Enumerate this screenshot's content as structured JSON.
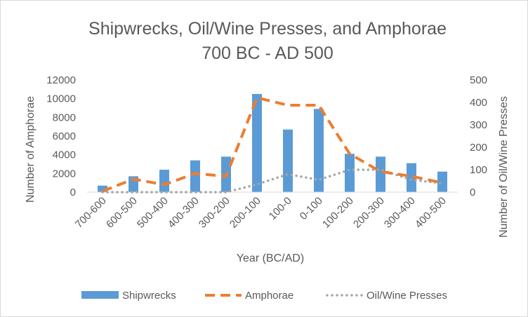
{
  "chart_data": {
    "type": "bar",
    "title": "Shipwrecks, Oil/Wine Presses, and Amphorae",
    "subtitle": "700 BC - AD 500",
    "xlabel": "Year (BC/AD)",
    "ylabel": "Number of Amphorae",
    "y2label": "Number of Oil/Wine Presses",
    "categories": [
      "700-600",
      "600-500",
      "500-400",
      "400-300",
      "300-200",
      "200-100",
      "100-0",
      "0-100",
      "100-200",
      "200-300",
      "300-400",
      "400-500"
    ],
    "ylim": [
      0,
      12000
    ],
    "yticks": [
      0,
      2000,
      4000,
      6000,
      8000,
      10000,
      12000
    ],
    "y2lim": [
      0,
      500
    ],
    "y2ticks": [
      0,
      100,
      200,
      300,
      400,
      500
    ],
    "grid": false,
    "legend_position": "bottom",
    "series": [
      {
        "name": "Shipwrecks",
        "type": "bar",
        "axis": "left",
        "color": "#5b9bd5",
        "values": [
          700,
          1700,
          2400,
          3400,
          3800,
          10500,
          6700,
          8900,
          4100,
          3800,
          3100,
          2200
        ]
      },
      {
        "name": "Amphorae",
        "type": "line",
        "style": "dashed",
        "axis": "left",
        "color": "#ed7d31",
        "values": [
          100,
          1400,
          800,
          2000,
          1700,
          10100,
          9300,
          9300,
          4100,
          2200,
          1700,
          1000
        ]
      },
      {
        "name": "Oil/Wine Presses",
        "type": "line",
        "style": "dotted",
        "axis": "right",
        "color": "#a5a5a5",
        "values": [
          0,
          0,
          0,
          0,
          0,
          35,
          80,
          55,
          100,
          100,
          55,
          40
        ]
      }
    ]
  }
}
